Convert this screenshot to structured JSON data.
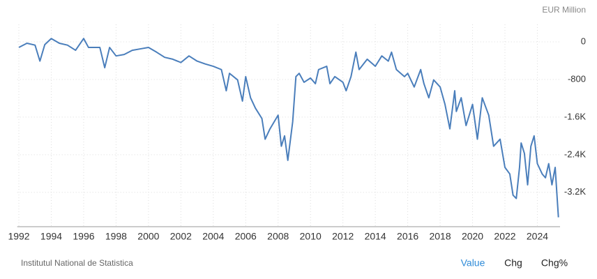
{
  "chart_data": {
    "type": "line",
    "unit_label": "EUR Million",
    "source": "Institutul National de Statistica",
    "buttons": [
      "Value",
      "Chg",
      "Chg%"
    ],
    "x": [
      1992,
      1992.5,
      1993,
      1993.3,
      1993.6,
      1994,
      1994.5,
      1995,
      1995.5,
      1996,
      1996.3,
      1997,
      1997.3,
      1997.6,
      1998,
      1998.5,
      1999,
      1999.5,
      2000,
      2000.5,
      2001,
      2001.5,
      2002,
      2002.5,
      2003,
      2003.5,
      2004,
      2004.5,
      2004.8,
      2005,
      2005.5,
      2005.8,
      2006,
      2006.3,
      2006.6,
      2007,
      2007.2,
      2007.5,
      2008,
      2008.2,
      2008.4,
      2008.6,
      2008.9,
      2009.1,
      2009.3,
      2009.6,
      2010,
      2010.3,
      2010.5,
      2011,
      2011.2,
      2011.5,
      2012,
      2012.2,
      2012.5,
      2012.8,
      2013,
      2013.5,
      2014,
      2014.4,
      2014.8,
      2015,
      2015.3,
      2015.8,
      2016,
      2016.4,
      2016.8,
      2017,
      2017.3,
      2017.6,
      2018,
      2018.3,
      2018.6,
      2018.9,
      2019,
      2019.3,
      2019.6,
      2020,
      2020.3,
      2020.6,
      2021,
      2021.3,
      2021.7,
      2022,
      2022.3,
      2022.5,
      2022.7,
      2022.9,
      2023,
      2023.2,
      2023.4,
      2023.6,
      2023.8,
      2024,
      2024.3,
      2024.5,
      2024.7,
      2024.9,
      2025.1,
      2025.3
    ],
    "series": [
      {
        "name": "Value",
        "color": "#4a7ebb",
        "values": [
          -120,
          -30,
          -70,
          -410,
          -60,
          70,
          -30,
          -70,
          -180,
          70,
          -120,
          -120,
          -550,
          -120,
          -300,
          -270,
          -180,
          -150,
          -120,
          -220,
          -330,
          -370,
          -440,
          -300,
          -410,
          -470,
          -520,
          -590,
          -1040,
          -670,
          -810,
          -1260,
          -740,
          -1190,
          -1410,
          -1630,
          -2070,
          -1850,
          -1560,
          -2220,
          -2000,
          -2520,
          -1700,
          -740,
          -670,
          -860,
          -770,
          -890,
          -590,
          -520,
          -890,
          -740,
          -860,
          -1040,
          -740,
          -220,
          -590,
          -370,
          -520,
          -300,
          -410,
          -220,
          -590,
          -740,
          -670,
          -960,
          -590,
          -890,
          -1190,
          -810,
          -960,
          -1330,
          -1850,
          -1040,
          -1480,
          -1190,
          -1780,
          -1330,
          -2070,
          -1190,
          -1560,
          -2220,
          -2070,
          -2670,
          -2810,
          -3260,
          -3330,
          -2670,
          -2150,
          -2370,
          -3040,
          -2220,
          -2000,
          -2590,
          -2810,
          -2890,
          -2590,
          -3040,
          -2670,
          -3730
        ]
      }
    ],
    "xlim": [
      1991.9,
      2025.4
    ],
    "xticks": [
      1992,
      1994,
      1996,
      1998,
      2000,
      2002,
      2004,
      2006,
      2008,
      2010,
      2012,
      2014,
      2016,
      2018,
      2020,
      2022,
      2024
    ],
    "ylim": [
      -3930,
      370
    ],
    "yticks": [
      0,
      -800,
      {
        "value": -1600,
        "label": "-1.6K"
      },
      {
        "value": -2400,
        "label": "-2.4K"
      },
      {
        "value": -3200,
        "label": "-3.2K"
      }
    ],
    "grid": true
  }
}
